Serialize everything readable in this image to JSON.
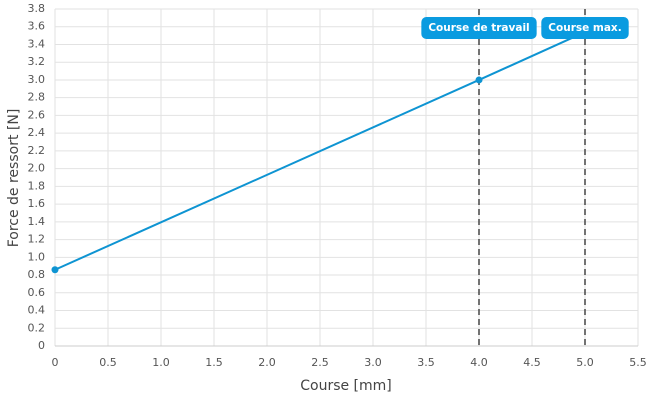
{
  "chart_data": {
    "type": "line",
    "x_label": "Course [mm]",
    "y_label": "Force de ressort [N]",
    "x": [
      0,
      4,
      5
    ],
    "values": [
      0.86,
      3.0,
      3.54
    ],
    "color": "#0e94d2",
    "xlim": [
      0,
      5.5
    ],
    "ylim": [
      0,
      3.8
    ],
    "xticks": [
      0,
      0.5,
      {
        "value": 1,
        "label": "1.0"
      },
      1.5,
      {
        "value": 2,
        "label": "2.0"
      },
      2.5,
      {
        "value": 3,
        "label": "3.0"
      },
      3.5,
      {
        "value": 4,
        "label": "4.0"
      },
      4.5,
      {
        "value": 5,
        "label": "5.0"
      },
      5.5
    ],
    "yticks": [
      0,
      0.2,
      0.4,
      0.6,
      0.8,
      {
        "value": 1,
        "label": "1.0"
      },
      1.2,
      1.4,
      1.6,
      1.8,
      {
        "value": 2,
        "label": "2.0"
      },
      2.2,
      2.4,
      2.6,
      2.8,
      {
        "value": 3,
        "label": "3.0"
      },
      3.2,
      3.4,
      3.6,
      3.8
    ],
    "grid": true,
    "annotations": [
      {
        "x": 4,
        "label": "Course de travail",
        "color": "#0a9be0"
      },
      {
        "x": 5,
        "label": "Course max.",
        "color": "#0a9be0"
      }
    ]
  }
}
